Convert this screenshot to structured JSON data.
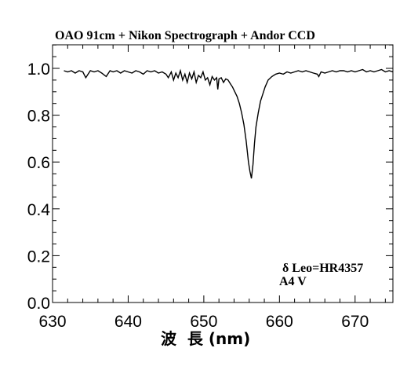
{
  "chart_data": {
    "type": "line",
    "title": "OAO 91cm + Nikon Spectrograph + Andor CCD",
    "xlabel": "波  長 (nm)",
    "ylabel": "",
    "xlim": [
      630,
      675
    ],
    "ylim": [
      0.0,
      1.1
    ],
    "x_ticks": [
      "630",
      "640",
      "650",
      "660",
      "670"
    ],
    "y_ticks": [
      "0.0",
      "0.2",
      "0.4",
      "0.6",
      "0.8",
      "1.0"
    ],
    "grid": false,
    "annotations": [
      "δ Leo=HR4357",
      "A4 V"
    ],
    "series": [
      {
        "x": [
          631.5,
          632.0,
          632.5,
          633.0,
          633.5,
          634.0,
          634.4,
          634.7,
          635.0,
          635.5,
          636.0,
          636.5,
          636.9,
          637.1,
          637.3,
          637.6,
          638.0,
          638.5,
          639.0,
          639.5,
          640.0,
          640.5,
          641.0,
          641.5,
          642.0,
          642.5,
          643.0,
          643.5,
          644.0,
          644.5,
          645.0,
          645.3,
          645.7,
          646.0,
          646.3,
          646.6,
          646.9,
          647.2,
          647.5,
          647.8,
          648.1,
          648.4,
          648.7,
          649.0,
          649.3,
          649.6,
          649.9,
          650.2,
          650.5,
          650.8,
          651.1,
          651.4,
          651.7,
          651.85,
          652.0,
          652.3,
          652.6,
          652.9,
          653.2,
          653.5,
          653.8,
          654.1,
          654.4,
          654.7,
          655.0,
          655.3,
          655.6,
          655.9,
          656.1,
          656.3,
          656.5,
          656.7,
          656.9,
          657.2,
          657.5,
          657.8,
          658.1,
          658.5,
          659.0,
          659.5,
          660.0,
          660.5,
          661.0,
          661.5,
          662.0,
          662.5,
          663.0,
          663.5,
          664.0,
          664.5,
          665.0,
          665.2,
          665.5,
          666.0,
          666.5,
          667.0,
          667.5,
          668.0,
          668.5,
          669.0,
          669.5,
          670.0,
          670.5,
          671.0,
          671.5,
          672.0,
          672.5,
          673.0,
          673.5,
          674.0,
          674.5,
          675.0
        ],
        "values": [
          0.99,
          0.985,
          0.99,
          0.98,
          0.99,
          0.985,
          0.96,
          0.975,
          0.99,
          0.985,
          0.99,
          0.98,
          0.97,
          0.965,
          0.975,
          0.99,
          0.985,
          0.99,
          0.98,
          0.99,
          0.985,
          0.98,
          0.99,
          0.985,
          0.975,
          0.99,
          0.985,
          0.99,
          0.98,
          0.985,
          0.975,
          0.96,
          0.985,
          0.95,
          0.98,
          0.96,
          0.99,
          0.95,
          0.975,
          0.94,
          0.98,
          0.955,
          0.985,
          0.94,
          0.97,
          0.96,
          0.985,
          0.95,
          0.96,
          0.93,
          0.965,
          0.95,
          0.96,
          0.91,
          0.955,
          0.96,
          0.94,
          0.955,
          0.95,
          0.935,
          0.92,
          0.9,
          0.88,
          0.85,
          0.81,
          0.76,
          0.69,
          0.6,
          0.56,
          0.53,
          0.59,
          0.68,
          0.75,
          0.81,
          0.86,
          0.89,
          0.92,
          0.95,
          0.965,
          0.975,
          0.98,
          0.975,
          0.985,
          0.98,
          0.985,
          0.99,
          0.985,
          0.99,
          0.985,
          0.98,
          0.975,
          0.965,
          0.985,
          0.98,
          0.985,
          0.99,
          0.985,
          0.99,
          0.99,
          0.985,
          0.99,
          0.985,
          0.99,
          0.995,
          0.985,
          0.99,
          0.985,
          0.99,
          0.995,
          0.985,
          0.99,
          0.985
        ]
      }
    ]
  }
}
